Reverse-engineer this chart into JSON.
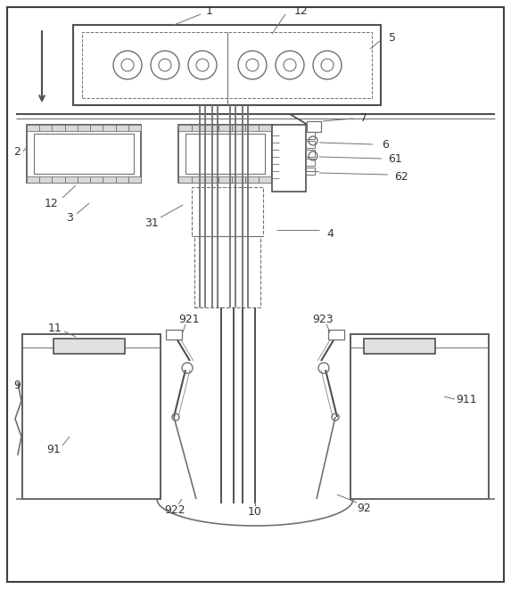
{
  "bg": "#ffffff",
  "lc": "#707070",
  "lc_dark": "#505050",
  "lc_light": "#909090",
  "fs": 9
}
